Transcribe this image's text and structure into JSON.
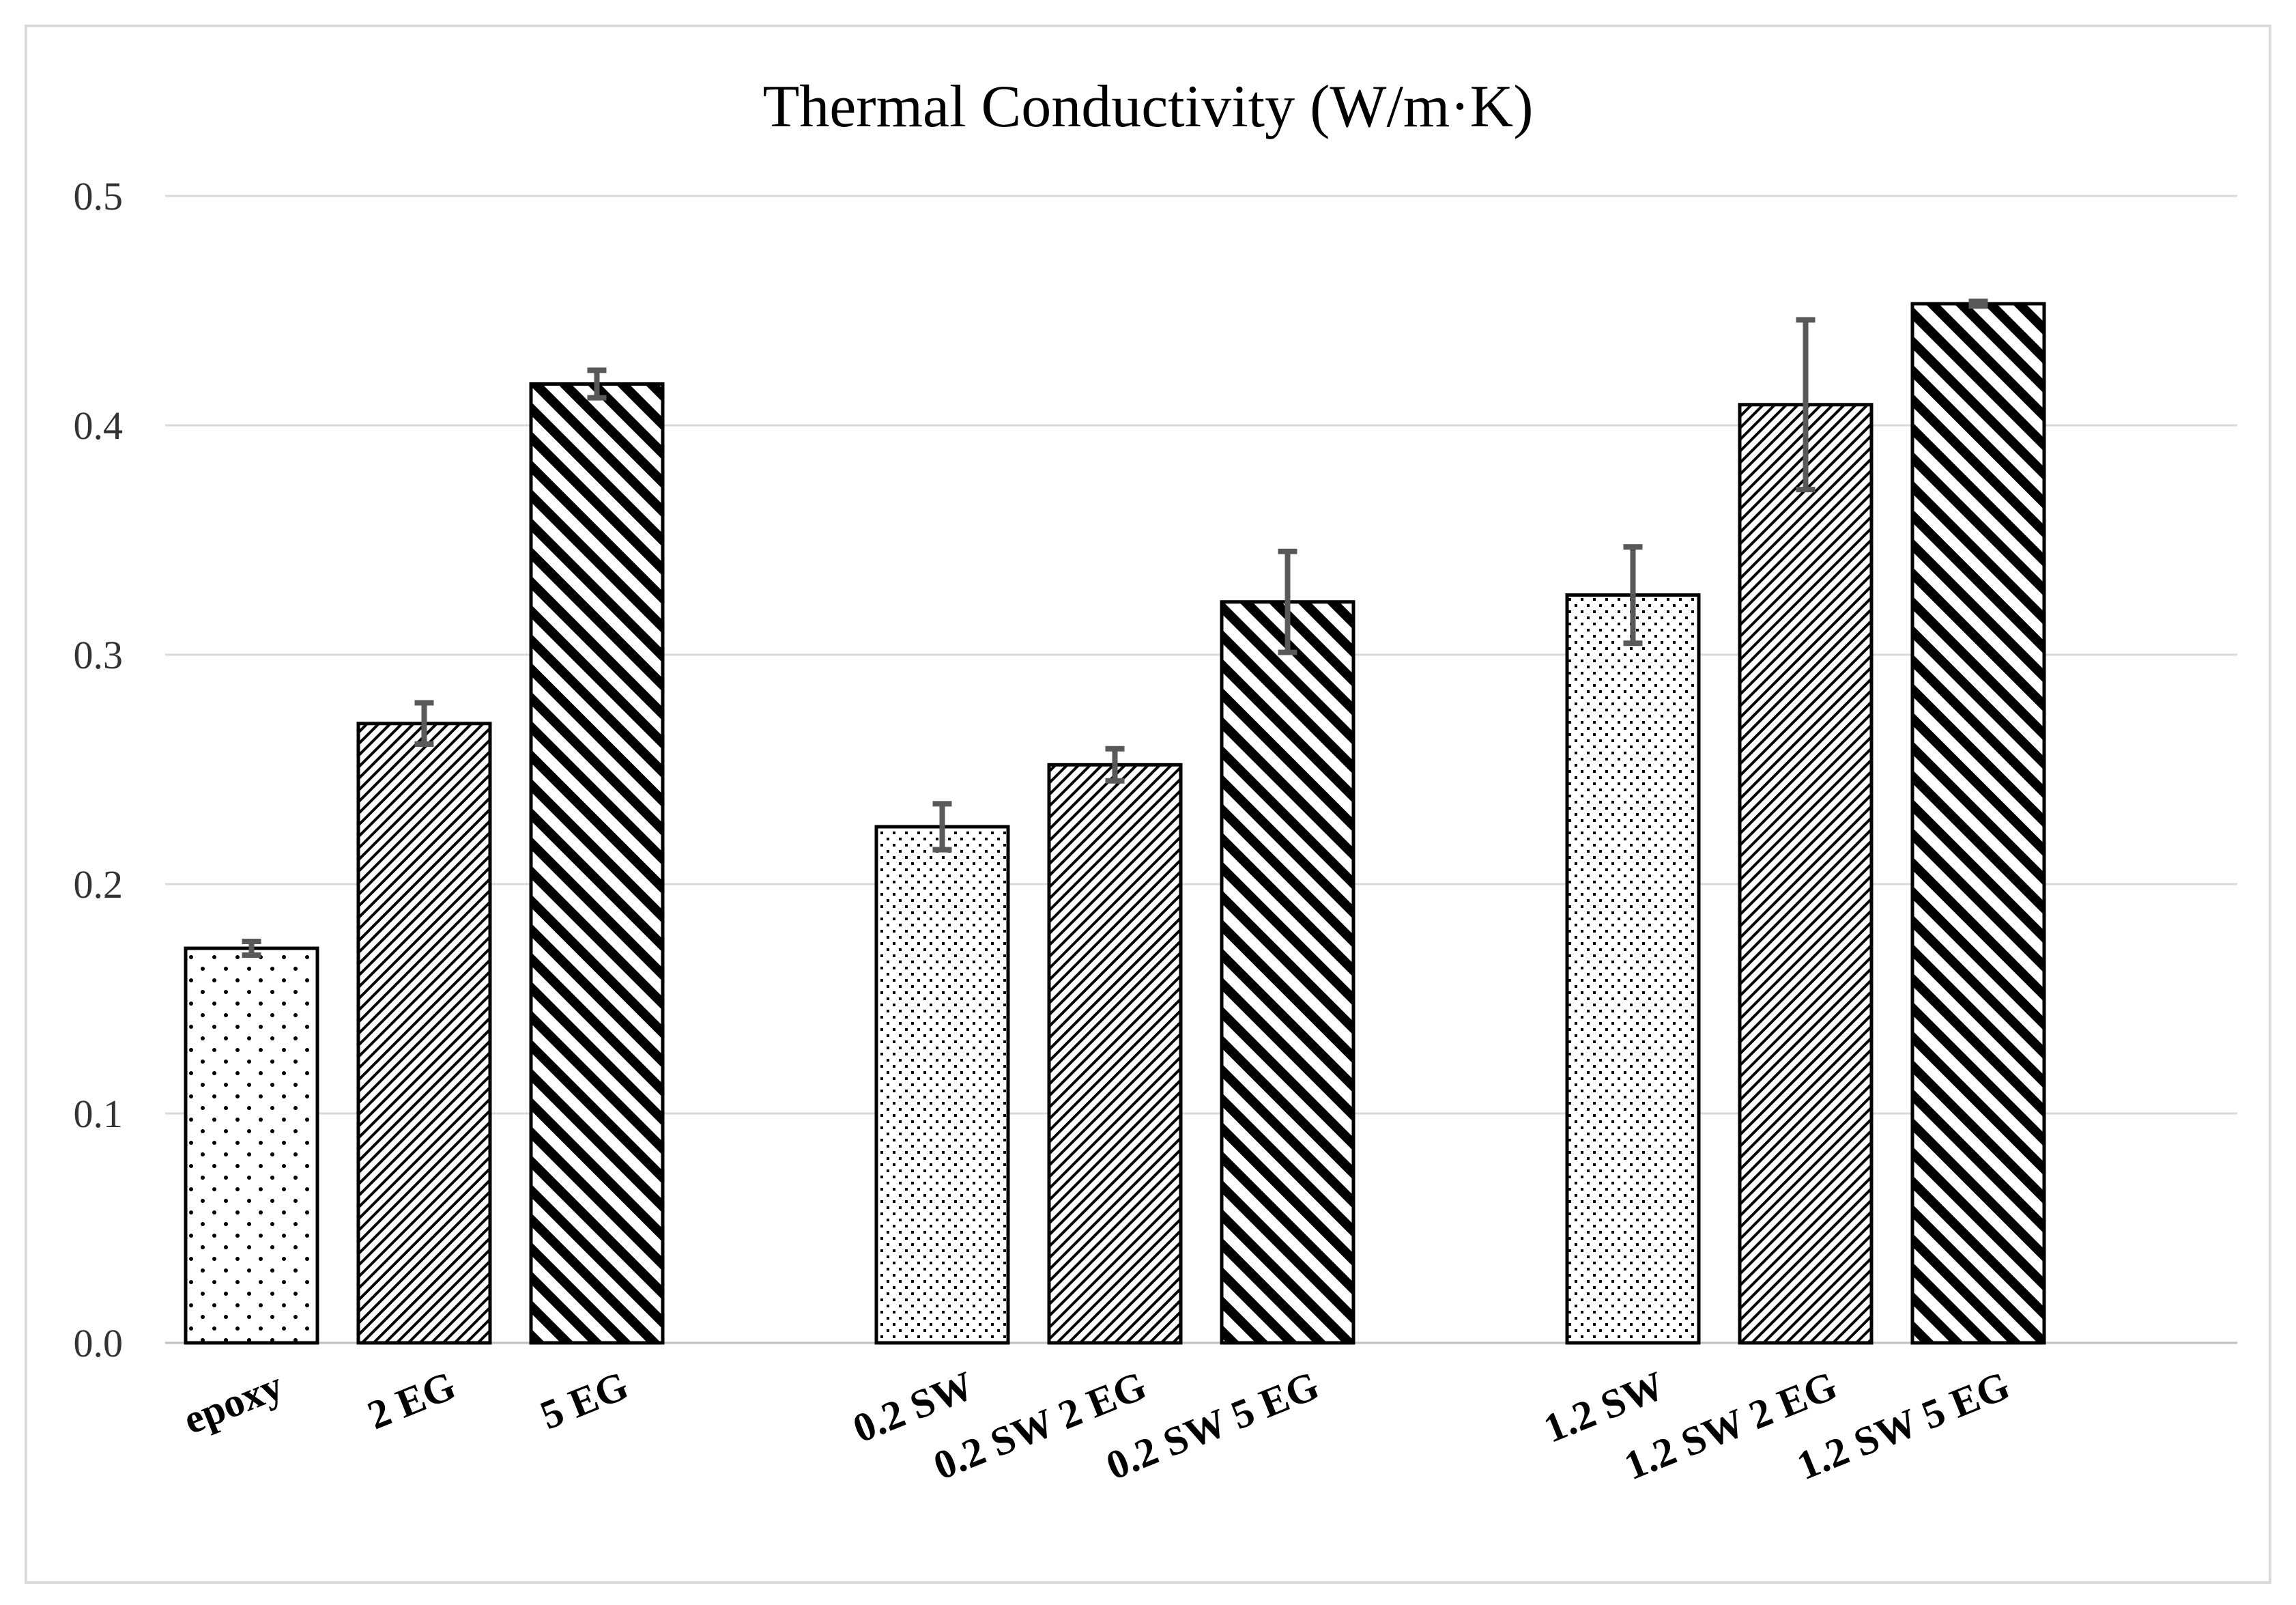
{
  "chart_data": {
    "type": "bar",
    "title": "Thermal Conductivity (W/m·K)",
    "xlabel": "",
    "ylabel": "",
    "ylim": [
      0,
      0.5
    ],
    "yticks": [
      "0.0",
      "0.1",
      "0.2",
      "0.3",
      "0.4",
      "0.5"
    ],
    "grid": true,
    "categories": [
      "epoxy",
      "2 EG",
      "5 EG",
      "",
      "0.2 SW",
      "0.2 SW 2 EG",
      "0.2 SW 5 EG",
      "",
      "1.2 SW",
      "1.2 SW 2 EG",
      "1.2 SW 5 EG",
      ""
    ],
    "values": [
      0.172,
      0.27,
      0.418,
      null,
      0.225,
      0.252,
      0.323,
      null,
      0.326,
      0.409,
      0.453,
      null
    ],
    "errors": [
      0.003,
      0.009,
      0.006,
      null,
      0.01,
      0.007,
      0.022,
      null,
      0.021,
      0.037,
      0.001,
      null
    ],
    "patterns": [
      "dots",
      "fine-hatch",
      "wide-hatch",
      null,
      "dense-dots",
      "fine-hatch",
      "wide-hatch",
      null,
      "dense-dots",
      "fine-hatch",
      "wide-hatch",
      null
    ],
    "colors": {
      "bar_outline": "#000000",
      "error_bar": "#595959",
      "grid": "#d9d9d9",
      "frame": "#d9d9d9"
    }
  }
}
